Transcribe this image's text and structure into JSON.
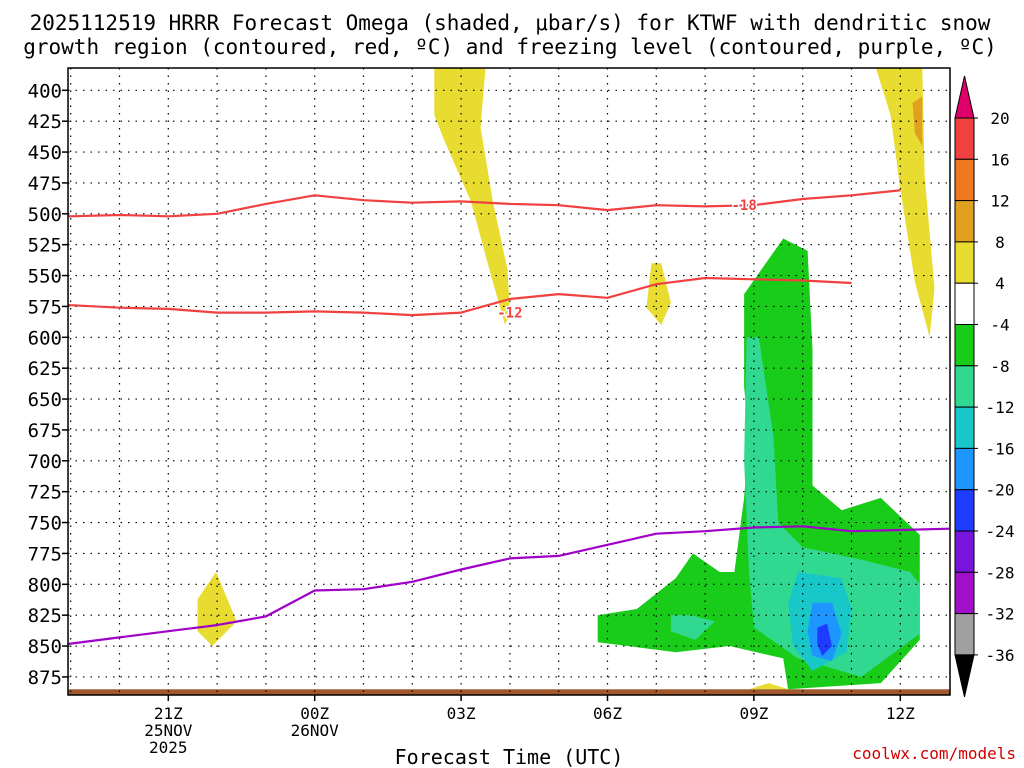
{
  "chart_data": {
    "type": "heatmap",
    "title_line1": "2025112519 HRRR Forecast Omega (shaded, μbar/s) for KTWF with dendritic snow",
    "title_line2": "growth region (contoured, red, ºC) and freezing level (contoured, purple, ºC)",
    "xlabel": "Forecast Time (UTC)",
    "credit": "coolwx.com/models",
    "x_ticks": [
      {
        "t": 2,
        "label": "21Z",
        "sub1": "25NOV",
        "sub2": "2025"
      },
      {
        "t": 5,
        "label": "00Z",
        "sub1": "26NOV",
        "sub2": ""
      },
      {
        "t": 8,
        "label": "03Z",
        "sub1": "",
        "sub2": ""
      },
      {
        "t": 11,
        "label": "06Z",
        "sub1": "",
        "sub2": ""
      },
      {
        "t": 14,
        "label": "09Z",
        "sub1": "",
        "sub2": ""
      },
      {
        "t": 17,
        "label": "12Z",
        "sub1": "",
        "sub2": ""
      }
    ],
    "y_ticks": [
      400,
      425,
      450,
      475,
      500,
      525,
      550,
      575,
      600,
      625,
      650,
      675,
      700,
      725,
      750,
      775,
      800,
      825,
      850,
      875
    ],
    "colorbar": {
      "labels": [
        "20",
        "16",
        "12",
        "8",
        "4",
        "-4",
        "-8",
        "-12",
        "-16",
        "-20",
        "-24",
        "-28",
        "-32",
        "-36"
      ],
      "colors": [
        "#e0006c",
        "#f04040",
        "#f07820",
        "#e0a020",
        "#e8dc30",
        "#ffffff",
        "#19cc19",
        "#30d890",
        "#18c8c8",
        "#1e96ff",
        "#1e3cff",
        "#7814dc",
        "#a010c8",
        "#a0a0a0",
        "#000000"
      ]
    },
    "contours": [
      {
        "label": "-18",
        "color": "#f04040",
        "points": [
          [
            -1,
            500
          ],
          [
            0,
            502
          ],
          [
            1,
            501
          ],
          [
            2,
            502
          ],
          [
            3,
            500
          ],
          [
            4,
            492
          ],
          [
            5,
            485
          ],
          [
            6,
            489
          ],
          [
            7,
            491
          ],
          [
            8,
            490
          ],
          [
            9,
            492
          ],
          [
            10,
            493
          ],
          [
            11,
            497
          ],
          [
            12,
            493
          ],
          [
            13,
            494
          ],
          [
            14,
            493
          ],
          [
            15,
            488
          ],
          [
            16,
            485
          ],
          [
            17,
            481
          ]
        ]
      },
      {
        "label": "-12",
        "color": "#f04040",
        "points": [
          [
            -1,
            571
          ],
          [
            0,
            574
          ],
          [
            1,
            576
          ],
          [
            2,
            577
          ],
          [
            3,
            580
          ],
          [
            4,
            580
          ],
          [
            5,
            579
          ],
          [
            6,
            580
          ],
          [
            7,
            582
          ],
          [
            8,
            580
          ],
          [
            9,
            569
          ],
          [
            10,
            565
          ],
          [
            11,
            568
          ],
          [
            12,
            557
          ],
          [
            13,
            552
          ],
          [
            14,
            553
          ],
          [
            15,
            554
          ],
          [
            16,
            556
          ]
        ]
      },
      {
        "label": "",
        "color": "#a000c8",
        "points": [
          [
            -1,
            855
          ],
          [
            0,
            848
          ],
          [
            1,
            843
          ],
          [
            2,
            838
          ],
          [
            3,
            833
          ],
          [
            4,
            826
          ],
          [
            5,
            805
          ],
          [
            6,
            804
          ],
          [
            7,
            798
          ],
          [
            8,
            788
          ],
          [
            9,
            779
          ],
          [
            10,
            777
          ],
          [
            11,
            768
          ],
          [
            12,
            759
          ],
          [
            13,
            757
          ],
          [
            14,
            754
          ],
          [
            15,
            753
          ],
          [
            16,
            757
          ],
          [
            17,
            756
          ],
          [
            18,
            755
          ]
        ]
      }
    ],
    "omega_regions": [
      {
        "fill": 4,
        "points": [
          [
            7.45,
            382
          ],
          [
            8.5,
            382
          ],
          [
            8.4,
            430
          ],
          [
            8.65,
            490
          ],
          [
            8.95,
            545
          ],
          [
            9.0,
            580
          ],
          [
            8.9,
            590
          ],
          [
            8.6,
            548
          ],
          [
            8.2,
            490
          ],
          [
            7.65,
            440
          ],
          [
            7.45,
            420
          ]
        ]
      },
      {
        "fill": 4,
        "points": [
          [
            16.5,
            382
          ],
          [
            17.45,
            382
          ],
          [
            17.5,
            470
          ],
          [
            17.7,
            560
          ],
          [
            17.6,
            600
          ],
          [
            17.3,
            555
          ],
          [
            17.0,
            480
          ],
          [
            16.8,
            420
          ]
        ]
      },
      {
        "fill": 3,
        "points": [
          [
            17.25,
            410
          ],
          [
            17.45,
            405
          ],
          [
            17.45,
            445
          ],
          [
            17.3,
            435
          ]
        ]
      },
      {
        "fill": 4,
        "points": [
          [
            11.9,
            540
          ],
          [
            12.1,
            540
          ],
          [
            12.3,
            572
          ],
          [
            12.1,
            590
          ],
          [
            11.8,
            576
          ]
        ]
      },
      {
        "fill": 4,
        "points": [
          [
            2.6,
            812
          ],
          [
            2.98,
            790
          ],
          [
            3.4,
            830
          ],
          [
            2.9,
            850
          ],
          [
            2.6,
            838
          ]
        ]
      },
      {
        "fill": 4,
        "points": [
          [
            13.9,
            885
          ],
          [
            14.3,
            880
          ],
          [
            14.7,
            885
          ]
        ]
      },
      {
        "fill": 6,
        "points": [
          [
            13.8,
            565
          ],
          [
            14.6,
            520
          ],
          [
            15.1,
            530
          ],
          [
            15.2,
            610
          ],
          [
            15.2,
            720
          ],
          [
            15.8,
            740
          ],
          [
            16.6,
            730
          ],
          [
            17.4,
            760
          ],
          [
            17.4,
            845
          ],
          [
            16.6,
            880
          ],
          [
            14.7,
            885
          ],
          [
            14.6,
            860
          ],
          [
            13.5,
            850
          ],
          [
            12.4,
            855
          ],
          [
            10.8,
            847
          ],
          [
            10.8,
            825
          ],
          [
            11.6,
            820
          ],
          [
            12.4,
            795
          ],
          [
            12.75,
            775
          ],
          [
            13.3,
            790
          ],
          [
            13.6,
            790
          ],
          [
            13.8,
            730
          ],
          [
            13.9,
            680
          ],
          [
            13.8,
            640
          ]
        ]
      },
      {
        "fill": 7,
        "points": [
          [
            13.85,
            600
          ],
          [
            14.1,
            600
          ],
          [
            14.4,
            680
          ],
          [
            14.5,
            750
          ],
          [
            15.0,
            770
          ],
          [
            16.2,
            780
          ],
          [
            17.2,
            790
          ],
          [
            17.4,
            800
          ],
          [
            17.4,
            840
          ],
          [
            16.2,
            875
          ],
          [
            14.9,
            860
          ],
          [
            14.0,
            835
          ],
          [
            13.9,
            790
          ],
          [
            13.8,
            700
          ]
        ]
      },
      {
        "fill": 7,
        "points": [
          [
            12.3,
            825
          ],
          [
            12.7,
            825
          ],
          [
            13.2,
            830
          ],
          [
            12.8,
            845
          ],
          [
            12.3,
            838
          ]
        ]
      },
      {
        "fill": 8,
        "points": [
          [
            14.9,
            790
          ],
          [
            15.8,
            795
          ],
          [
            16.0,
            820
          ],
          [
            15.9,
            855
          ],
          [
            15.2,
            870
          ],
          [
            14.8,
            850
          ],
          [
            14.7,
            815
          ]
        ]
      },
      {
        "fill": 9,
        "points": [
          [
            15.2,
            815
          ],
          [
            15.6,
            815
          ],
          [
            15.8,
            840
          ],
          [
            15.6,
            862
          ],
          [
            15.2,
            858
          ],
          [
            15.1,
            838
          ]
        ]
      },
      {
        "fill": 10,
        "points": [
          [
            15.3,
            835
          ],
          [
            15.5,
            832
          ],
          [
            15.6,
            850
          ],
          [
            15.4,
            858
          ],
          [
            15.3,
            848
          ]
        ]
      }
    ],
    "surface_color": "#a0582c",
    "ylim": [
      875,
      395
    ]
  }
}
